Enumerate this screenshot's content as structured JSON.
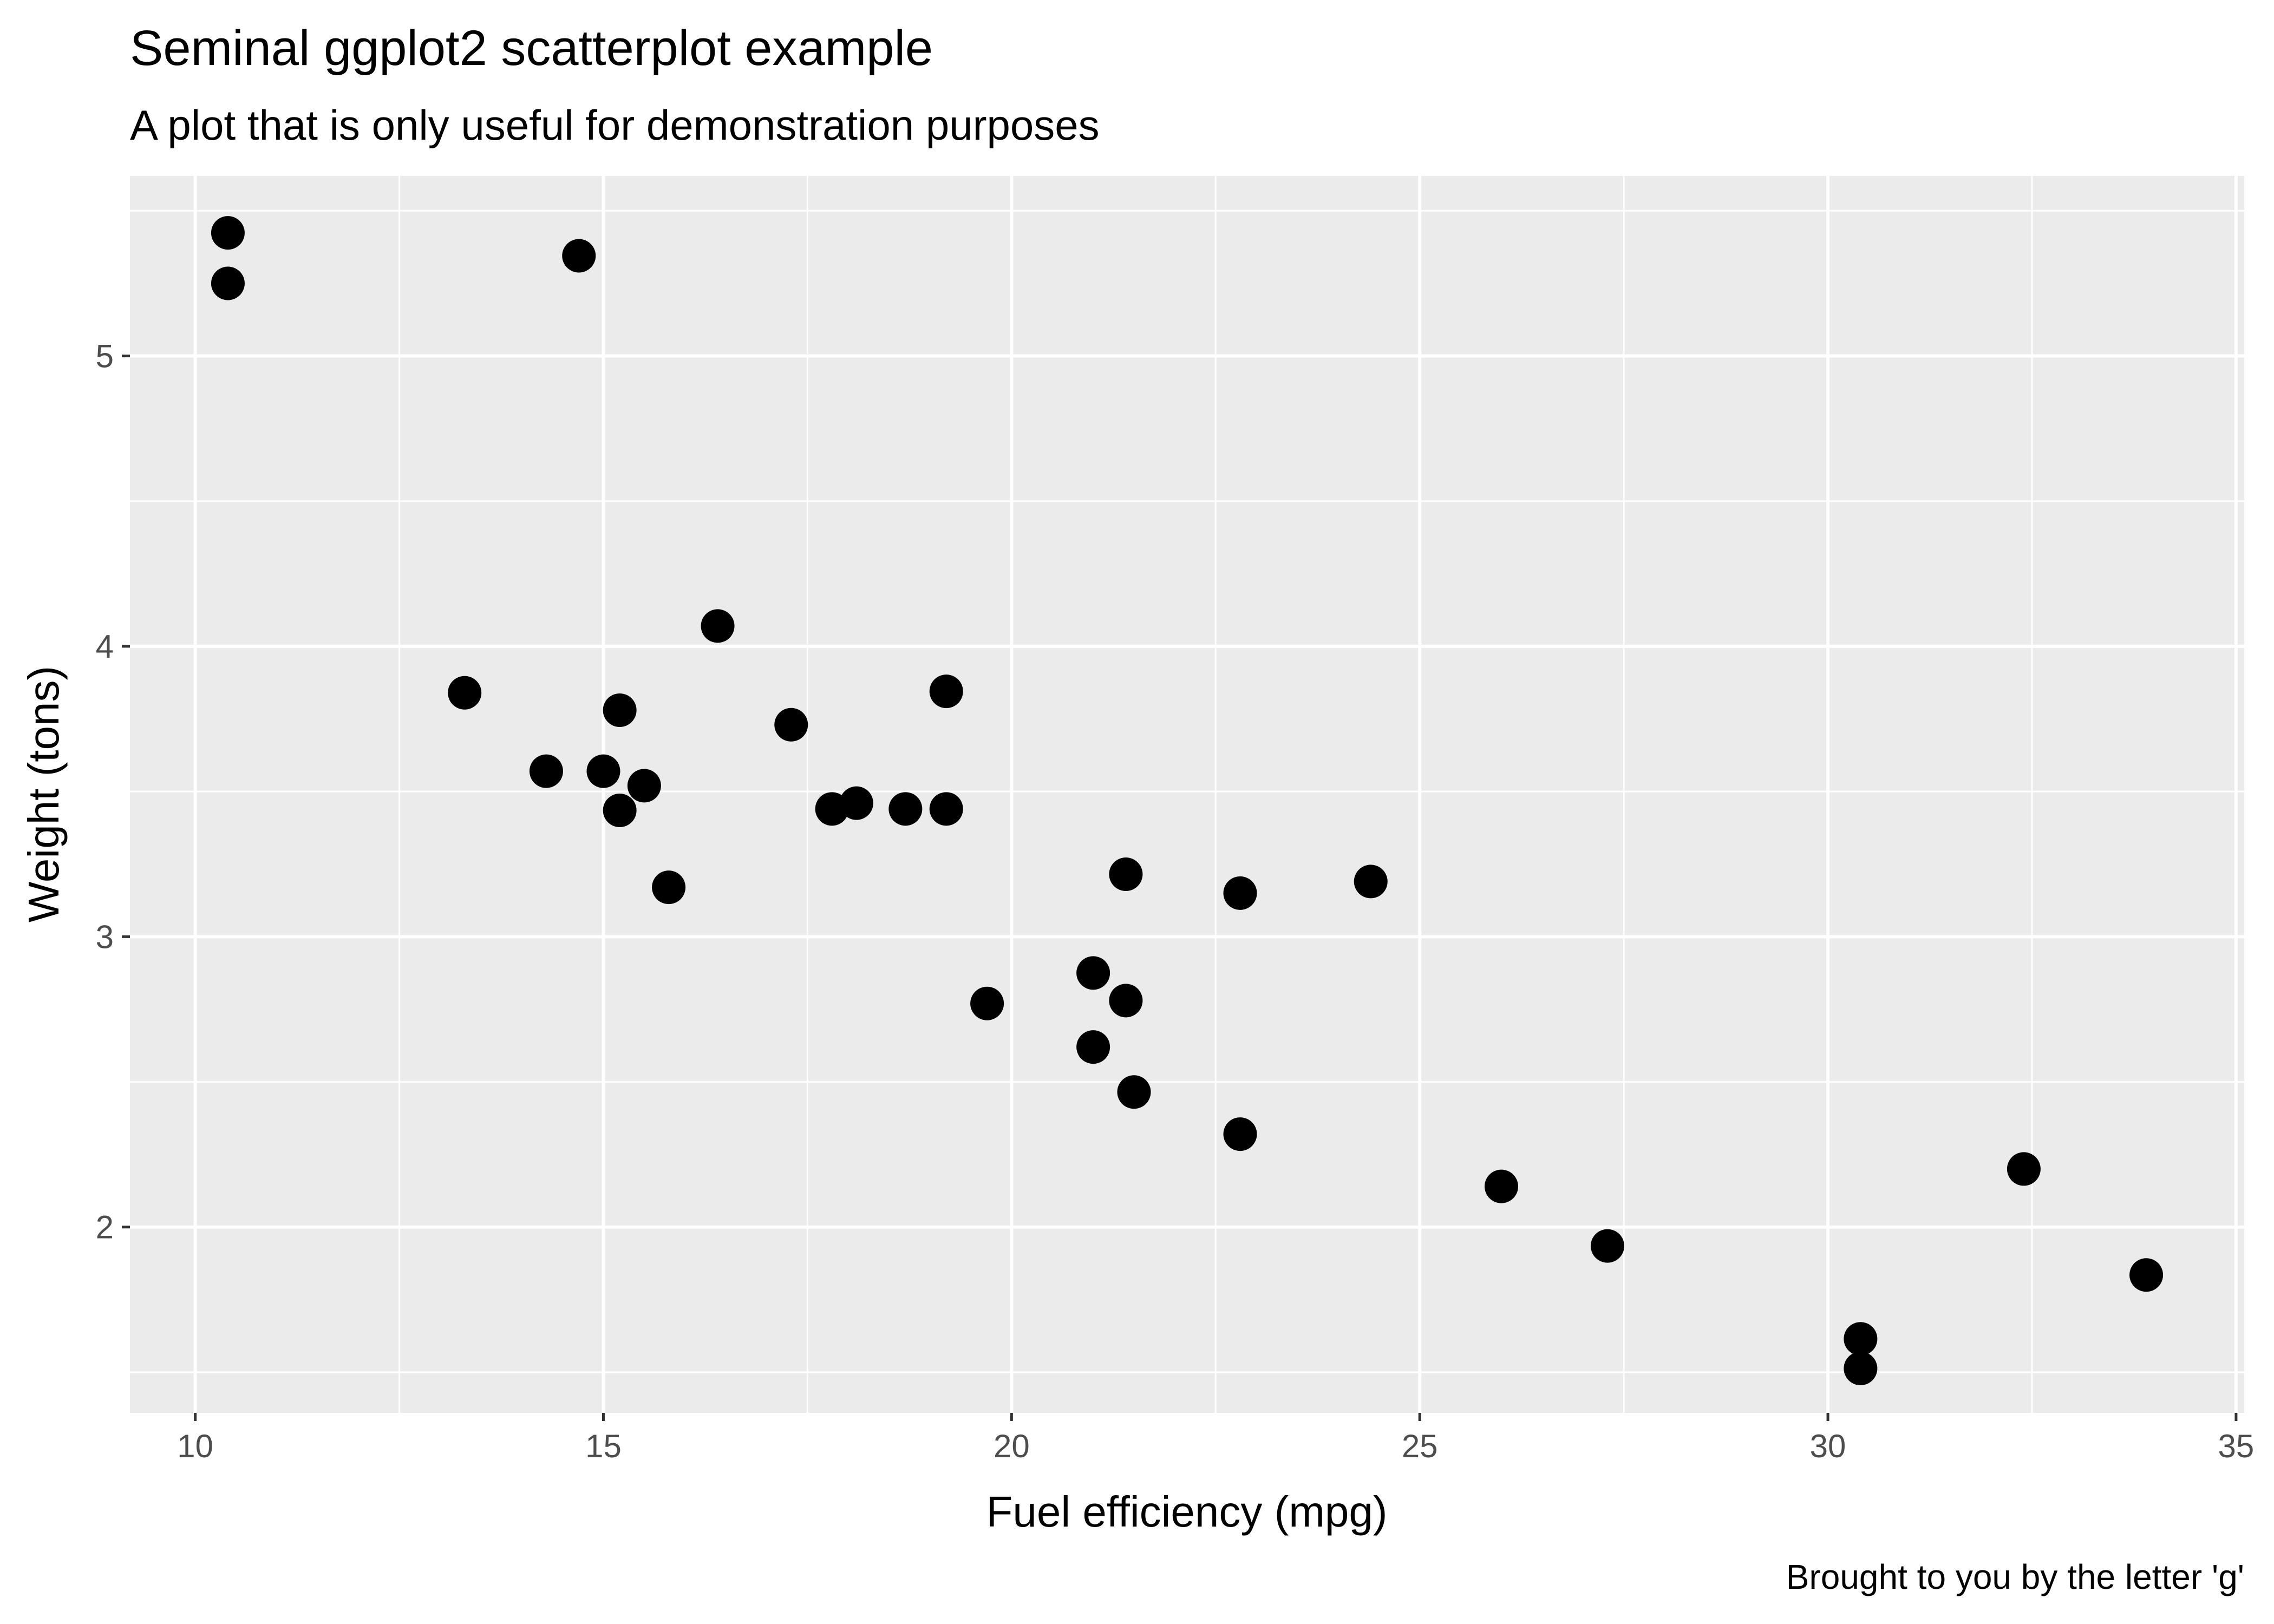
{
  "chart_data": {
    "type": "scatter",
    "title": "Seminal ggplot2 scatterplot example",
    "subtitle": "A plot that is only useful for demonstration purposes",
    "caption": "Brought to you by the letter 'g'",
    "xlabel": "Fuel efficiency (mpg)",
    "ylabel": "Weight (tons)",
    "xlim": [
      9.2,
      35.1
    ],
    "ylim": [
      1.36,
      5.62
    ],
    "x_ticks": [
      10,
      15,
      20,
      25,
      30,
      35
    ],
    "y_ticks": [
      2,
      3,
      4,
      5
    ],
    "x_tick_labels": [
      "10",
      "15",
      "20",
      "25",
      "30",
      "35"
    ],
    "y_tick_labels": [
      "2",
      "3",
      "4",
      "5"
    ],
    "grid": true,
    "panel_color": "#ebebeb",
    "grid_color": "#ffffff",
    "point_color": "#000000",
    "points": [
      {
        "x": 21.0,
        "y": 2.62
      },
      {
        "x": 21.0,
        "y": 2.875
      },
      {
        "x": 22.8,
        "y": 2.32
      },
      {
        "x": 21.4,
        "y": 3.215
      },
      {
        "x": 18.7,
        "y": 3.44
      },
      {
        "x": 18.1,
        "y": 3.46
      },
      {
        "x": 14.3,
        "y": 3.57
      },
      {
        "x": 24.4,
        "y": 3.19
      },
      {
        "x": 22.8,
        "y": 3.15
      },
      {
        "x": 19.2,
        "y": 3.44
      },
      {
        "x": 17.8,
        "y": 3.44
      },
      {
        "x": 16.4,
        "y": 4.07
      },
      {
        "x": 17.3,
        "y": 3.73
      },
      {
        "x": 15.2,
        "y": 3.78
      },
      {
        "x": 10.4,
        "y": 5.25
      },
      {
        "x": 10.4,
        "y": 5.424
      },
      {
        "x": 14.7,
        "y": 5.345
      },
      {
        "x": 32.4,
        "y": 2.2
      },
      {
        "x": 30.4,
        "y": 1.615
      },
      {
        "x": 33.9,
        "y": 1.835
      },
      {
        "x": 21.5,
        "y": 2.465
      },
      {
        "x": 15.5,
        "y": 3.52
      },
      {
        "x": 15.2,
        "y": 3.435
      },
      {
        "x": 13.3,
        "y": 3.84
      },
      {
        "x": 19.2,
        "y": 3.845
      },
      {
        "x": 27.3,
        "y": 1.935
      },
      {
        "x": 26.0,
        "y": 2.14
      },
      {
        "x": 30.4,
        "y": 1.513
      },
      {
        "x": 15.8,
        "y": 3.17
      },
      {
        "x": 19.7,
        "y": 2.77
      },
      {
        "x": 15.0,
        "y": 3.57
      },
      {
        "x": 21.4,
        "y": 2.78
      }
    ]
  }
}
